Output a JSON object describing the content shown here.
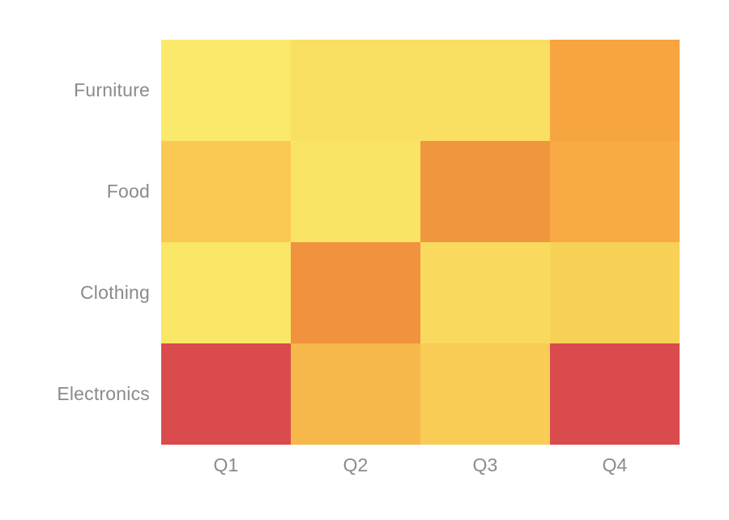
{
  "page": {
    "background": "#ffffff"
  },
  "styles": {
    "label_color": "#8b8b8b"
  },
  "chart_data": {
    "type": "heatmap",
    "title": "",
    "rows": [
      "Furniture",
      "Food",
      "Clothing",
      "Electronics"
    ],
    "columns": [
      "Q1",
      "Q2",
      "Q3",
      "Q4"
    ],
    "cell_colors": [
      [
        "#FAE96B",
        "#F9DF62",
        "#F9DF62",
        "#F7A540"
      ],
      [
        "#FAC853",
        "#FAE466",
        "#F0963F",
        "#F8AA44"
      ],
      [
        "#FAE667",
        "#F1923E",
        "#F9DA5F",
        "#F8D157"
      ],
      [
        "#D94B4D",
        "#F7B84B",
        "#F9CC55",
        "#D94B4D"
      ]
    ],
    "values_normalized_estimate": [
      [
        0.05,
        0.15,
        0.15,
        0.55
      ],
      [
        0.3,
        0.1,
        0.65,
        0.55
      ],
      [
        0.08,
        0.67,
        0.25,
        0.32
      ],
      [
        1.0,
        0.42,
        0.28,
        1.0
      ]
    ],
    "colormap": "yellow-to-red",
    "legend": "none",
    "grid": "off",
    "data_labels": "none"
  }
}
